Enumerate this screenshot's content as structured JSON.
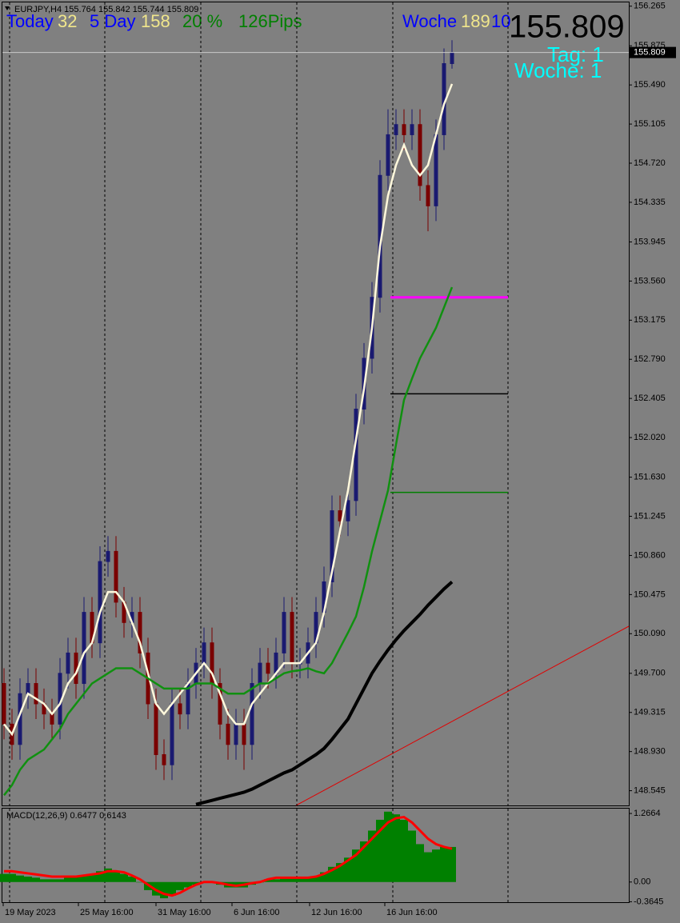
{
  "header": "EURJPY,H4  155.764 155.842 155.744 155.809",
  "overlay": {
    "today_label": "Today",
    "today_value": "32",
    "day5_label": "5 Day",
    "day5_value": "158",
    "percent": "20 %",
    "pips": "126Pips",
    "week_label": "Woche",
    "week_value": "189",
    "week_extra": "10",
    "big_price": "155.809",
    "tag": "Tag: 1",
    "woche": "Woche: 1"
  },
  "chart_data": {
    "type": "candlestick",
    "up_color": "#1a1a70",
    "down_color": "#7a0000",
    "open": [
      149.6,
      149.2,
      149.0,
      149.5,
      149.6,
      149.4,
      149.3,
      149.2,
      149.7,
      149.9,
      149.6,
      150.3,
      150.0,
      150.8,
      150.9,
      150.4,
      150.2,
      150.3,
      149.9,
      149.4,
      148.9,
      148.8,
      149.4,
      149.3,
      149.6,
      149.8,
      150.0,
      149.6,
      149.2,
      149.0,
      149.2,
      149.0,
      149.6,
      149.8,
      149.7,
      149.9,
      150.3,
      149.8,
      149.8,
      150.0,
      150.3,
      150.6,
      151.3,
      151.2,
      151.4,
      152.3,
      152.8,
      153.4,
      154.6,
      155.0,
      155.1,
      155.0,
      155.1,
      154.5,
      154.3,
      155.0,
      155.7
    ],
    "high": [
      149.75,
      149.35,
      149.65,
      149.75,
      149.75,
      149.55,
      149.45,
      149.85,
      150.05,
      150.05,
      150.45,
      150.45,
      150.95,
      151.05,
      151.05,
      150.55,
      150.45,
      150.45,
      150.05,
      149.55,
      149.05,
      149.55,
      149.55,
      149.75,
      149.95,
      150.15,
      150.15,
      149.75,
      149.35,
      149.35,
      149.35,
      149.75,
      149.95,
      149.95,
      150.05,
      150.45,
      150.45,
      149.95,
      150.15,
      150.45,
      150.75,
      151.45,
      151.45,
      151.55,
      152.45,
      152.95,
      153.55,
      154.75,
      155.25,
      155.25,
      155.25,
      155.25,
      155.25,
      154.65,
      155.15,
      155.85,
      155.93
    ],
    "low": [
      149.05,
      148.85,
      148.85,
      149.35,
      149.25,
      149.15,
      149.05,
      149.05,
      149.55,
      149.45,
      149.45,
      149.85,
      149.85,
      150.65,
      150.25,
      150.05,
      150.05,
      149.75,
      149.25,
      148.75,
      148.65,
      148.65,
      149.15,
      149.15,
      149.45,
      149.65,
      149.45,
      149.05,
      148.85,
      148.85,
      148.75,
      148.85,
      149.45,
      149.55,
      149.55,
      149.75,
      149.65,
      149.65,
      149.65,
      149.85,
      150.15,
      150.45,
      151.05,
      151.05,
      151.25,
      152.15,
      152.65,
      153.25,
      154.45,
      154.85,
      154.85,
      154.85,
      154.35,
      154.05,
      154.15,
      154.85,
      155.65
    ],
    "close": [
      149.2,
      149.0,
      149.5,
      149.6,
      149.4,
      149.3,
      149.2,
      149.7,
      149.9,
      149.6,
      150.3,
      150.0,
      150.8,
      150.9,
      150.4,
      150.2,
      150.3,
      149.9,
      149.4,
      148.9,
      148.8,
      149.4,
      149.3,
      149.6,
      149.8,
      150.0,
      149.6,
      149.2,
      149.0,
      149.2,
      149.0,
      149.6,
      149.8,
      149.7,
      149.9,
      150.3,
      149.8,
      149.8,
      150.0,
      150.3,
      150.6,
      151.3,
      151.2,
      151.4,
      152.3,
      152.8,
      153.4,
      154.6,
      155.0,
      155.1,
      155.0,
      155.1,
      154.5,
      154.3,
      155.0,
      155.7,
      155.81
    ],
    "lines": [
      {
        "color": "#fff8dc",
        "values": [
          149.2,
          149.1,
          149.3,
          149.5,
          149.45,
          149.4,
          149.3,
          149.4,
          149.6,
          149.7,
          149.9,
          150.0,
          150.3,
          150.5,
          150.5,
          150.4,
          150.2,
          150.0,
          149.7,
          149.4,
          149.3,
          149.4,
          149.5,
          149.6,
          149.7,
          149.8,
          149.7,
          149.5,
          149.3,
          149.2,
          149.2,
          149.4,
          149.5,
          149.6,
          149.7,
          149.8,
          149.8,
          149.8,
          149.9,
          150.0,
          150.3,
          150.7,
          151.1,
          151.5,
          152.0,
          152.5,
          153.1,
          153.9,
          154.4,
          154.7,
          154.9,
          154.7,
          154.6,
          154.7,
          155.0,
          155.3,
          155.5
        ]
      },
      {
        "color": "#109010",
        "values": [
          148.5,
          148.6,
          148.75,
          148.85,
          148.9,
          148.95,
          149.05,
          149.15,
          149.3,
          149.4,
          149.5,
          149.6,
          149.65,
          149.7,
          149.75,
          149.75,
          149.75,
          149.7,
          149.65,
          149.6,
          149.55,
          149.55,
          149.55,
          149.55,
          149.6,
          149.6,
          149.6,
          149.55,
          149.5,
          149.5,
          149.5,
          149.55,
          149.6,
          149.6,
          149.65,
          149.7,
          149.72,
          149.73,
          149.75,
          149.72,
          149.7,
          149.8,
          149.95,
          150.1,
          150.26,
          150.55,
          150.9,
          151.2,
          151.5,
          151.95,
          152.39,
          152.6,
          152.8,
          152.95,
          153.1,
          153.3,
          153.5
        ]
      },
      {
        "color": "#000000",
        "values": [
          null,
          null,
          null,
          null,
          null,
          null,
          null,
          null,
          null,
          null,
          null,
          null,
          null,
          null,
          null,
          null,
          null,
          null,
          null,
          null,
          null,
          null,
          null,
          null,
          148.41,
          148.43,
          148.45,
          148.47,
          148.49,
          148.51,
          148.53,
          148.56,
          148.6,
          148.64,
          148.68,
          148.72,
          148.75,
          148.8,
          148.85,
          148.9,
          148.96,
          149.05,
          149.15,
          149.25,
          149.4,
          149.55,
          149.7,
          149.82,
          149.93,
          150.03,
          150.12,
          150.2,
          150.28,
          150.37,
          150.45,
          150.53,
          150.6
        ]
      }
    ],
    "levels": [
      {
        "value": 153.4,
        "color": "#ff00ff"
      },
      {
        "value": 152.45,
        "color": "#000000"
      },
      {
        "value": 151.48,
        "color": "#008000"
      }
    ],
    "last_price": 155.809,
    "ylim": [
      148.4,
      156.31
    ],
    "yticks": [
      156.265,
      155.875,
      {
        "value": 155.49,
        "label": "155.490"
      },
      155.105,
      {
        "value": 154.72,
        "label": "154.720"
      },
      154.335,
      153.945,
      {
        "value": 153.56,
        "label": "153.560"
      },
      153.175,
      {
        "value": 152.79,
        "label": "152.790"
      },
      152.405,
      {
        "value": 152.02,
        "label": "152.020"
      },
      {
        "value": 151.63,
        "label": "151.630"
      },
      151.245,
      {
        "value": 150.86,
        "label": "150.860"
      },
      150.475,
      {
        "value": 150.09,
        "label": "150.090"
      },
      {
        "value": 149.7,
        "label": "149.700"
      },
      149.315,
      {
        "value": 148.93,
        "label": "148.930"
      },
      148.545
    ],
    "x_labels": [
      "19 May 2023",
      "25 May 16:00",
      "31 May 16:00",
      "6 Jun 16:00",
      "12 Jun 16:00",
      "16 Jun 16:00"
    ],
    "macd": {
      "title": "MACD(12,26,9) 0.6477 0.6143",
      "hist_color": "#008000",
      "signal_color": "#ff0000",
      "histogram": [
        0.15,
        0.15,
        0.12,
        0.1,
        0.08,
        0.05,
        0.05,
        0.05,
        0.08,
        0.1,
        0.12,
        0.15,
        0.2,
        0.25,
        0.2,
        0.15,
        0.1,
        0.0,
        -0.15,
        -0.25,
        -0.3,
        -0.25,
        -0.15,
        -0.1,
        -0.05,
        0.0,
        0.0,
        -0.05,
        -0.1,
        -0.1,
        -0.1,
        -0.05,
        0.0,
        0.05,
        0.05,
        0.1,
        0.1,
        0.08,
        0.08,
        0.1,
        0.18,
        0.28,
        0.35,
        0.45,
        0.6,
        0.75,
        0.95,
        1.15,
        1.3,
        1.25,
        1.15,
        0.95,
        0.7,
        0.55,
        0.6,
        0.65,
        0.6477
      ],
      "signal": [
        0.2,
        0.2,
        0.18,
        0.16,
        0.14,
        0.12,
        0.1,
        0.1,
        0.1,
        0.1,
        0.12,
        0.14,
        0.16,
        0.2,
        0.2,
        0.18,
        0.12,
        0.05,
        -0.05,
        -0.15,
        -0.22,
        -0.25,
        -0.2,
        -0.12,
        -0.05,
        0.0,
        0.0,
        -0.02,
        -0.05,
        -0.07,
        -0.05,
        -0.02,
        0.0,
        0.05,
        0.08,
        0.08,
        0.08,
        0.08,
        0.08,
        0.1,
        0.15,
        0.22,
        0.3,
        0.4,
        0.5,
        0.65,
        0.8,
        0.95,
        1.1,
        1.18,
        1.2,
        1.1,
        0.95,
        0.8,
        0.7,
        0.65,
        0.6143
      ],
      "ylim": [
        -0.373,
        1.356
      ],
      "yticks": [
        1.2664,
        {
          "value": 0,
          "label": "0.00"
        },
        -0.3645
      ]
    }
  }
}
